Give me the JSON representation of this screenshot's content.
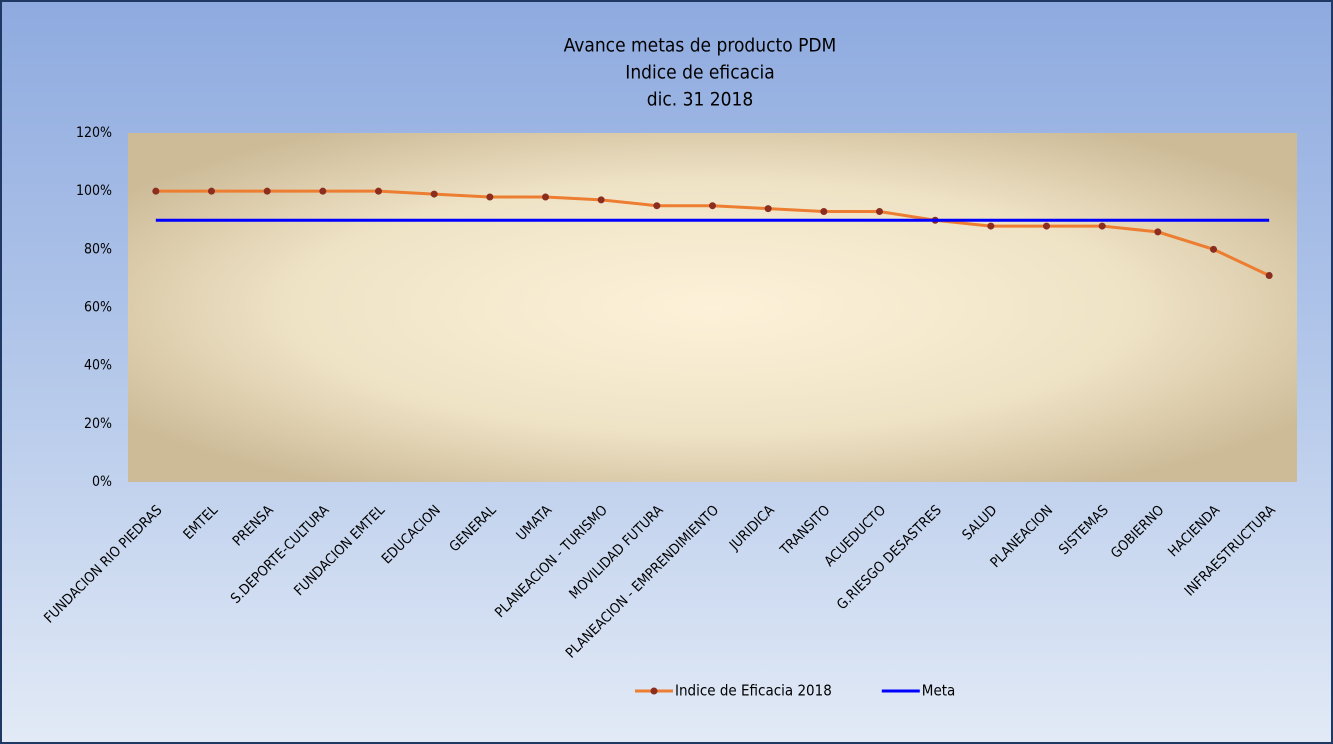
{
  "chart_data": {
    "type": "line",
    "title": [
      "Avance metas de producto PDM",
      "Indice de eficacia",
      "dic. 31 2018"
    ],
    "categories": [
      "FUNDACION RIO PIEDRAS",
      "EMTEL",
      "PRENSA",
      "S.DEPORTE-CULTURA",
      "FUNDACION EMTEL",
      "EDUCACION",
      "GENERAL",
      "UMATA",
      "PLANEACION - TURISMO",
      "MOVILIDAD FUTURA",
      "PLANEACION - EMPRENDIMIENTO",
      "JURIDICA",
      "TRANSITO",
      "ACUEDUCTO",
      "G.RIESGO DESASTRES",
      "SALUD",
      "PLANEACION",
      "SISTEMAS",
      "GOBIERNO",
      "HACIENDA",
      "INFRAESTRUCTURA"
    ],
    "series": [
      {
        "name": "Indice de Eficacia 2018",
        "color": "#ed7d31",
        "marker_color": "#8b2d1f",
        "markers": true,
        "values": [
          100,
          100,
          100,
          100,
          100,
          99,
          98,
          98,
          97,
          95,
          95,
          94,
          93,
          93,
          90,
          88,
          88,
          88,
          86,
          80,
          71
        ]
      },
      {
        "name": "Meta",
        "color": "#0000ff",
        "markers": false,
        "values": [
          90,
          90,
          90,
          90,
          90,
          90,
          90,
          90,
          90,
          90,
          90,
          90,
          90,
          90,
          90,
          90,
          90,
          90,
          90,
          90,
          90
        ]
      }
    ],
    "ylim": [
      0,
      120
    ],
    "yticks": [
      {
        "value": 0,
        "label": "0%"
      },
      {
        "value": 20,
        "label": "20%"
      },
      {
        "value": 40,
        "label": "40%"
      },
      {
        "value": 60,
        "label": "60%"
      },
      {
        "value": 80,
        "label": "80%"
      },
      {
        "value": 100,
        "label": "100%"
      },
      {
        "value": 120,
        "label": "120%"
      }
    ],
    "grid": false,
    "legend": "bottom"
  }
}
